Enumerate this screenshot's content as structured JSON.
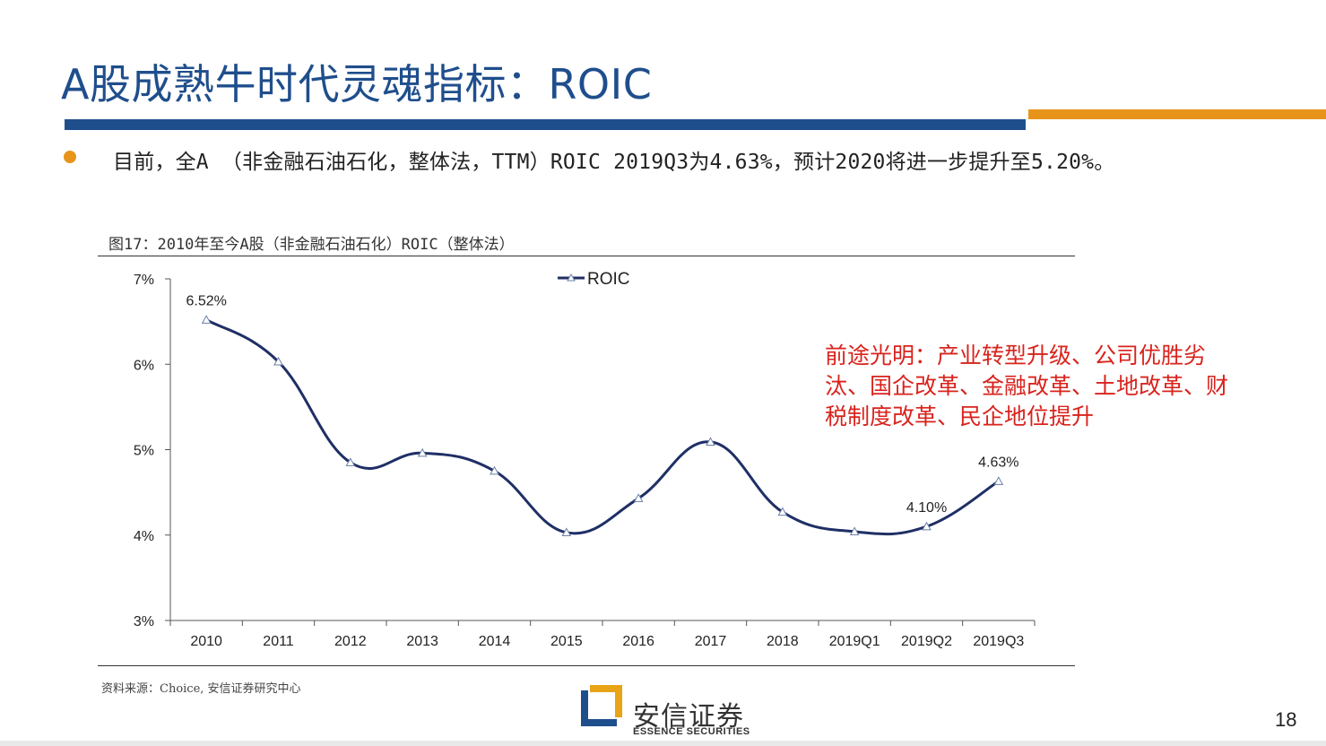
{
  "slide": {
    "title": "A股成熟牛时代灵魂指标：ROIC",
    "bullet": "目前，全A （非金融石油石化，整体法，TTM）ROIC 2019Q3为4.63%，预计2020将进一步提升至5.20%。",
    "figure_caption": "图17：2010年至今A股（非金融石油石化）ROIC（整体法）",
    "annotation": "前途光明：产业转型升级、公司优胜劣汰、国企改革、金融改革、土地改革、财税制度改革、民企地位提升",
    "source": "资料来源：Choice, 安信证券研究中心",
    "logo_name": "安信证券",
    "logo_sub": "ESSENCE SECURITIES",
    "page_number": "18"
  },
  "colors": {
    "title": "#1f4e8c",
    "rule_blue": "#1f4e8c",
    "rule_orange": "#e8941a",
    "bullet_dot": "#e8941a",
    "line": "#1f2f66",
    "annotation": "#d9231d",
    "logo_blue": "#1f4e8c",
    "logo_gold": "#e8a317"
  },
  "chart_data": {
    "type": "line",
    "title": "图17：2010年至今A股（非金融石油石化）ROIC（整体法）",
    "categories": [
      "2010",
      "2011",
      "2012",
      "2013",
      "2014",
      "2015",
      "2016",
      "2017",
      "2018",
      "2019Q1",
      "2019Q2",
      "2019Q3"
    ],
    "series": [
      {
        "name": "ROIC",
        "values": [
          6.52,
          6.03,
          4.85,
          4.96,
          4.75,
          4.03,
          4.43,
          5.09,
          4.27,
          4.04,
          4.1,
          4.63
        ]
      }
    ],
    "data_labels": [
      {
        "index": 0,
        "text": "6.52%"
      },
      {
        "index": 10,
        "text": "4.10%"
      },
      {
        "index": 11,
        "text": "4.63%"
      }
    ],
    "y_ticks": [
      "3%",
      "4%",
      "5%",
      "6%",
      "7%"
    ],
    "ylim": [
      3,
      7
    ],
    "xlabel": "",
    "ylabel": "",
    "legend": "top-center",
    "grid": false,
    "marker": "triangle",
    "smooth": true
  }
}
